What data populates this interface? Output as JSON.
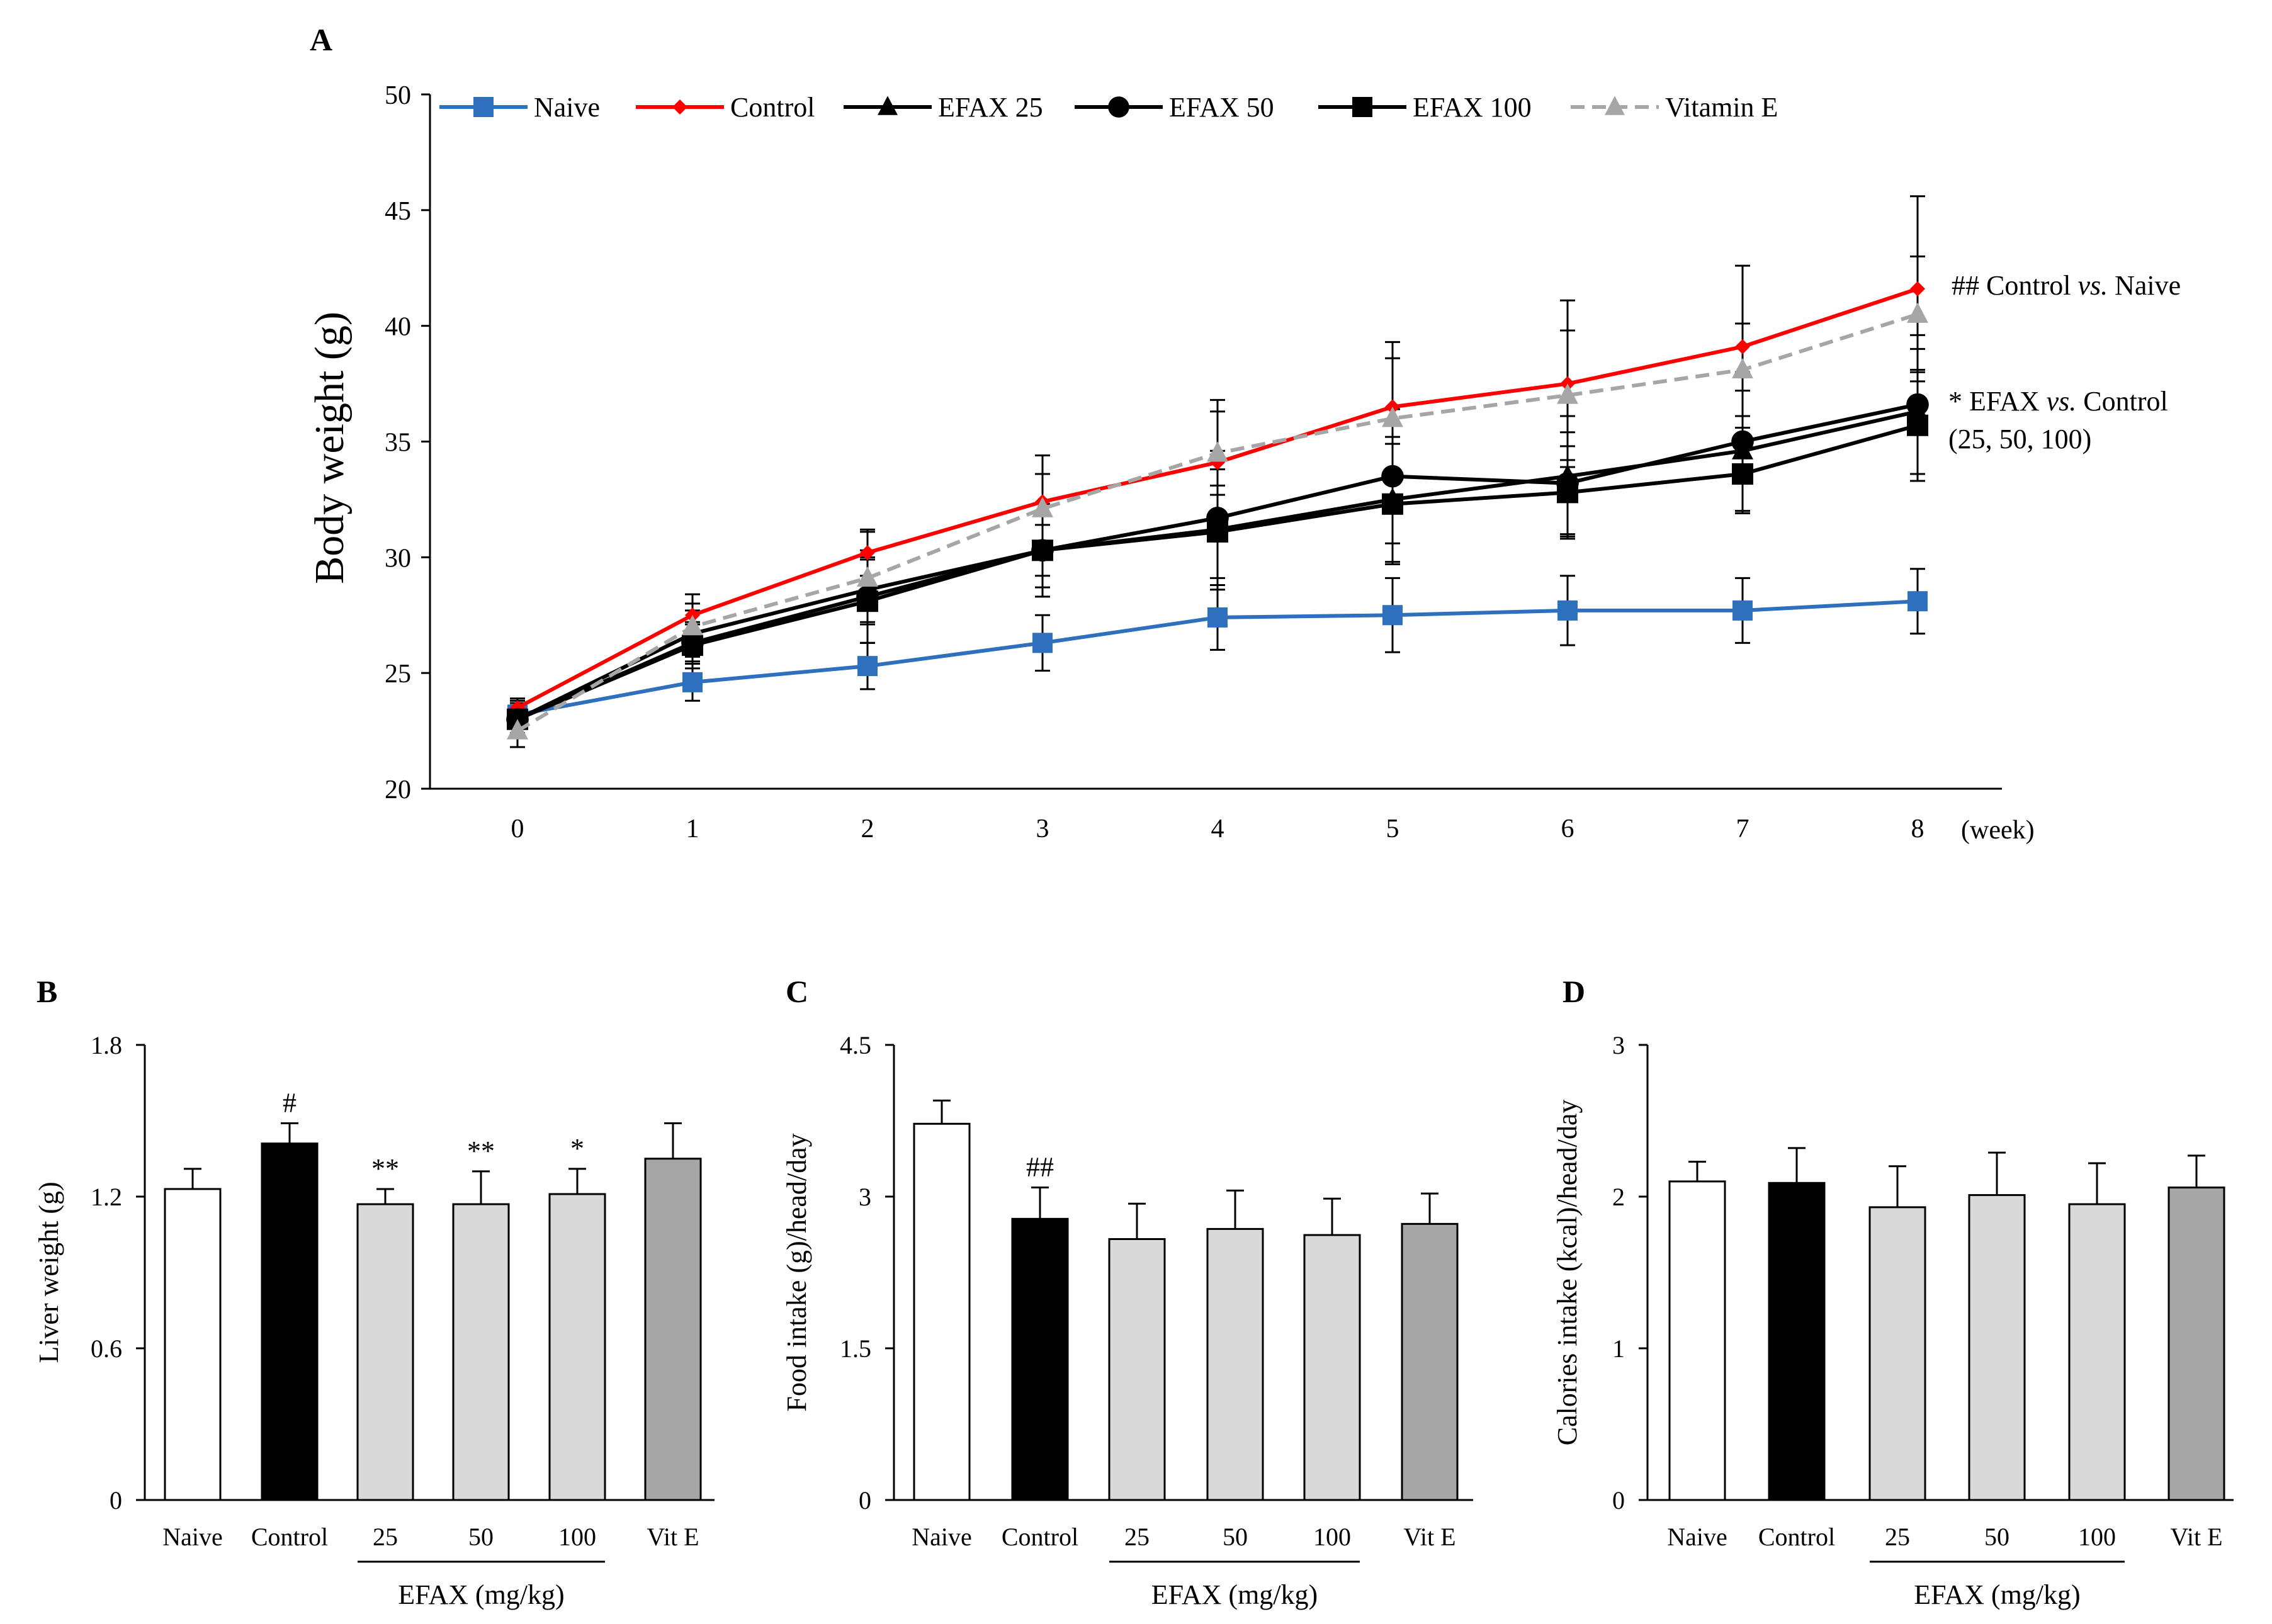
{
  "chart_data": [
    {
      "panel": "A",
      "type": "line",
      "title": "",
      "ylabel": "Body weight (g)",
      "xunit": "(week)",
      "x": [
        0,
        1,
        2,
        3,
        4,
        5,
        6,
        7,
        8
      ],
      "ylim": [
        20,
        50
      ],
      "yticks": [
        20,
        25,
        30,
        35,
        40,
        45,
        50
      ],
      "series": [
        {
          "name": "Naive",
          "color": "#2e6fbe",
          "dash": "solid",
          "marker": "square",
          "values": [
            23.2,
            24.6,
            25.3,
            26.3,
            27.4,
            27.5,
            27.7,
            27.7,
            28.1
          ],
          "errors": [
            0.5,
            0.8,
            1.0,
            1.2,
            1.4,
            1.6,
            1.5,
            1.4,
            1.4
          ]
        },
        {
          "name": "Control",
          "color": "#ff0000",
          "dash": "solid",
          "marker": "diamond",
          "values": [
            23.5,
            27.5,
            30.2,
            32.4,
            34.1,
            36.5,
            37.5,
            39.1,
            41.6
          ],
          "errors": [
            0.4,
            0.9,
            1.0,
            2.0,
            2.7,
            2.8,
            3.6,
            3.5,
            4.0
          ]
        },
        {
          "name": "EFAX 25",
          "color": "#000000",
          "dash": "solid",
          "marker": "triangle",
          "values": [
            23.0,
            26.7,
            28.6,
            30.3,
            31.2,
            32.5,
            33.5,
            34.6,
            36.3
          ],
          "errors": [
            0.8,
            1.0,
            1.4,
            2.0,
            2.6,
            2.7,
            2.6,
            2.6,
            2.7
          ]
        },
        {
          "name": "EFAX 50",
          "color": "#000000",
          "dash": "solid",
          "marker": "circle",
          "values": [
            23.0,
            26.3,
            28.3,
            30.3,
            31.7,
            33.5,
            33.2,
            35.0,
            36.6
          ],
          "errors": [
            0.6,
            0.8,
            2.0,
            1.1,
            2.9,
            2.9,
            2.2,
            3.0,
            3.0
          ]
        },
        {
          "name": "EFAX 100",
          "color": "#000000",
          "dash": "solid",
          "marker": "square",
          "values": [
            23.0,
            26.2,
            28.1,
            30.3,
            31.1,
            32.3,
            32.8,
            33.6,
            35.7
          ],
          "errors": [
            0.7,
            1.0,
            1.8,
            1.6,
            2.0,
            2.6,
            2.0,
            1.7,
            2.4
          ]
        },
        {
          "name": "Vitamin E",
          "color": "#a6a6a6",
          "dash": "dashed",
          "marker": "triangle",
          "values": [
            22.5,
            27.0,
            29.1,
            32.1,
            34.5,
            36.0,
            37.0,
            38.1,
            40.5
          ],
          "errors": [
            0.7,
            1.0,
            2.0,
            1.5,
            1.8,
            2.6,
            2.8,
            2.0,
            2.5
          ]
        }
      ],
      "annotations": {
        "hash_line": {
          "prefix": "## Control ",
          "italic": "vs.",
          "suffix": " Naive"
        },
        "star_line": {
          "prefix": "* EFAX ",
          "italic": "vs.",
          "suffix": " Control"
        },
        "dose_line": "(25, 50, 100)"
      }
    },
    {
      "panel": "B",
      "type": "bar",
      "ylabel": "Liver weight (g)",
      "categories": [
        "Naive",
        "Control",
        "25",
        "50",
        "100",
        "Vit E"
      ],
      "values": [
        1.23,
        1.41,
        1.17,
        1.17,
        1.21,
        1.35
      ],
      "errors": [
        0.08,
        0.08,
        0.06,
        0.13,
        0.1,
        0.14
      ],
      "significance": [
        "",
        "#",
        "**",
        "**",
        "*",
        ""
      ],
      "fills": [
        "#ffffff",
        "#000000",
        "#d9d9d9",
        "#d9d9d9",
        "#d9d9d9",
        "#a6a6a6"
      ],
      "ylim": [
        0,
        1.8
      ],
      "yticks": [
        "0",
        "0.6",
        "1.2",
        "1.8"
      ],
      "group_label": "EFAX (mg/kg)"
    },
    {
      "panel": "C",
      "type": "bar",
      "ylabel": "Food intake (g)/head/day",
      "categories": [
        "Naive",
        "Control",
        "25",
        "50",
        "100",
        "Vit E"
      ],
      "values": [
        3.72,
        2.78,
        2.58,
        2.68,
        2.62,
        2.73
      ],
      "errors": [
        0.23,
        0.31,
        0.35,
        0.38,
        0.36,
        0.3
      ],
      "significance": [
        "",
        "##",
        "",
        "",
        "",
        ""
      ],
      "fills": [
        "#ffffff",
        "#000000",
        "#d9d9d9",
        "#d9d9d9",
        "#d9d9d9",
        "#a6a6a6"
      ],
      "ylim": [
        0,
        4.5
      ],
      "yticks": [
        "0",
        "1.5",
        "3",
        "4.5"
      ],
      "group_label": "EFAX (mg/kg)"
    },
    {
      "panel": "D",
      "type": "bar",
      "ylabel": "Calories intake (kcal)/head/day",
      "categories": [
        "Naive",
        "Control",
        "25",
        "50",
        "100",
        "Vit E"
      ],
      "values": [
        2.1,
        2.09,
        1.93,
        2.01,
        1.95,
        2.06
      ],
      "errors": [
        0.13,
        0.23,
        0.27,
        0.28,
        0.27,
        0.21
      ],
      "significance": [
        "",
        "",
        "",
        "",
        "",
        ""
      ],
      "fills": [
        "#ffffff",
        "#000000",
        "#d9d9d9",
        "#d9d9d9",
        "#d9d9d9",
        "#a6a6a6"
      ],
      "ylim": [
        0,
        3
      ],
      "yticks": [
        "0",
        "1",
        "2",
        "3"
      ],
      "group_label": "EFAX (mg/kg)"
    }
  ]
}
